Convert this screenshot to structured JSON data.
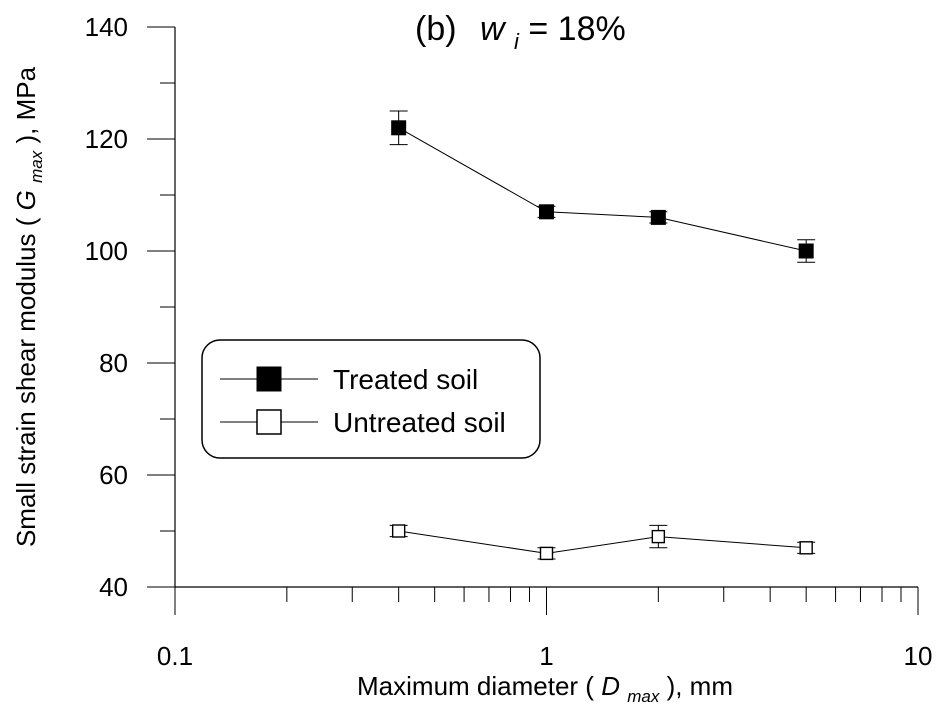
{
  "chart_data": {
    "type": "line",
    "title": {
      "prefix": "(b)",
      "var_main": "w",
      "var_sub": "i",
      "suffix": " = 18%"
    },
    "xlabel": {
      "pre": "Maximum diameter (",
      "var_main": "D",
      "var_sub": "max",
      "post": "), mm"
    },
    "ylabel": {
      "pre": "Small strain shear modulus (",
      "var_main": "G",
      "var_sub": "max",
      "post": "), MPa"
    },
    "x_scale": "log",
    "xlim": [
      0.1,
      10
    ],
    "ylim": [
      40,
      140
    ],
    "x_ticks": [
      {
        "value": 0.1,
        "label": "0.1"
      },
      {
        "value": 1,
        "label": "1"
      },
      {
        "value": 10,
        "label": "10"
      }
    ],
    "y_ticks": [
      {
        "value": 40,
        "label": "40"
      },
      {
        "value": 60,
        "label": "60"
      },
      {
        "value": 80,
        "label": "80"
      },
      {
        "value": 100,
        "label": "100"
      },
      {
        "value": 120,
        "label": "120"
      },
      {
        "value": 140,
        "label": "140"
      }
    ],
    "grid": false,
    "legend_position": "middle-left",
    "series": [
      {
        "name": "Treated soil",
        "marker": "filled-square",
        "color": "#000000",
        "x": [
          0.4,
          1,
          2,
          5
        ],
        "y": [
          122,
          107,
          106,
          100
        ],
        "error": [
          3,
          1,
          1,
          2
        ]
      },
      {
        "name": "Untreated soil",
        "marker": "open-square",
        "color": "#000000",
        "x": [
          0.4,
          1,
          2,
          5
        ],
        "y": [
          50,
          46,
          49,
          47
        ],
        "error": [
          1,
          1,
          2,
          1
        ]
      }
    ]
  }
}
